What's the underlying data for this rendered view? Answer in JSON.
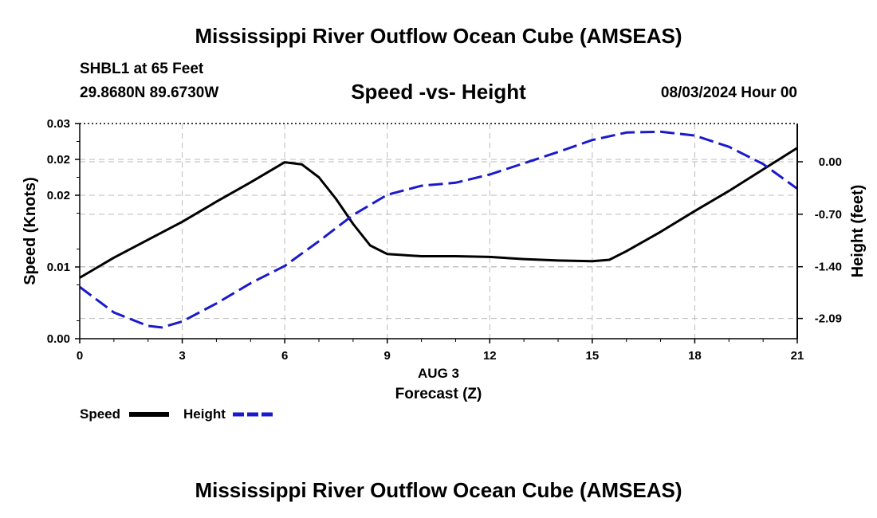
{
  "header": {
    "title": "Mississippi River Outflow Ocean Cube (AMSEAS)",
    "station": "SHBL1 at 65 Feet",
    "coords": "29.8680N  89.6730W",
    "datetime": "08/03/2024 Hour 00"
  },
  "footer": {
    "title": "Mississippi River Outflow Ocean Cube (AMSEAS)"
  },
  "colors": {
    "speed": "#000000",
    "height": "#1a1acc",
    "grid": "#bbbbbb"
  },
  "chart_data": {
    "type": "line",
    "title": "Speed -vs- Height",
    "xlabel": "Forecast (Z)",
    "date_label": "AUG 3",
    "ylabel": "Speed (Knots)",
    "y2label": "Height (feet)",
    "xlim": [
      0,
      21
    ],
    "ylim": [
      0,
      0.03
    ],
    "y2lim": [
      -2.36,
      0.51
    ],
    "x_ticks": [
      "0",
      "3",
      "6",
      "9",
      "12",
      "15",
      "18",
      "21"
    ],
    "x_tick_values": [
      0,
      3,
      6,
      9,
      12,
      15,
      18,
      21
    ],
    "y_ticks": [
      "0.00",
      "0.01",
      "0.02",
      "0.02",
      "0.03"
    ],
    "y_tick_values": [
      0,
      0.01,
      0.02,
      0.025,
      0.03
    ],
    "y2_ticks": [
      "0.00",
      "-0.70",
      "-1.40",
      "-2.09"
    ],
    "y2_tick_values": [
      0,
      -0.7,
      -1.4,
      -2.09
    ],
    "legend": [
      "Speed",
      "Height"
    ],
    "series": [
      {
        "name": "Speed",
        "axis": "left",
        "style": "solid",
        "x": [
          0,
          1,
          2,
          3,
          4,
          5,
          6,
          6.5,
          7,
          7.5,
          8,
          8.5,
          9,
          10,
          11,
          12,
          13,
          14,
          15,
          15.5,
          16,
          17,
          18,
          19,
          20,
          21
        ],
        "values": [
          0.0085,
          0.0113,
          0.0138,
          0.0163,
          0.0191,
          0.0218,
          0.0246,
          0.0243,
          0.0225,
          0.0195,
          0.016,
          0.013,
          0.0118,
          0.0115,
          0.0115,
          0.0114,
          0.0111,
          0.0109,
          0.0108,
          0.011,
          0.0122,
          0.0149,
          0.0178,
          0.0206,
          0.0236,
          0.0266
        ]
      },
      {
        "name": "Height",
        "axis": "right",
        "style": "dashed",
        "x": [
          0,
          1,
          2,
          2.4,
          3,
          4,
          5,
          6,
          7,
          8,
          9,
          10,
          11,
          12,
          13,
          14,
          15,
          16,
          17,
          18,
          19,
          20,
          21
        ],
        "values": [
          -1.67,
          -2.01,
          -2.19,
          -2.21,
          -2.13,
          -1.89,
          -1.62,
          -1.39,
          -1.06,
          -0.71,
          -0.44,
          -0.32,
          -0.28,
          -0.17,
          -0.02,
          0.13,
          0.29,
          0.39,
          0.4,
          0.35,
          0.2,
          -0.03,
          -0.36
        ]
      }
    ]
  }
}
